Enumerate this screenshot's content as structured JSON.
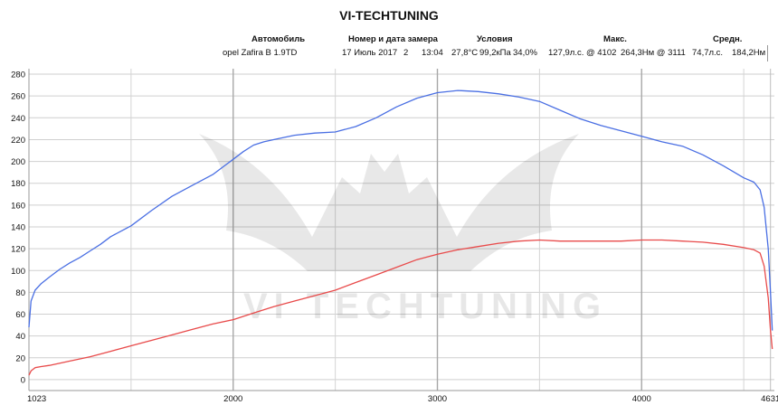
{
  "title": "VI-TECHTUNING",
  "table": {
    "headers": {
      "car": "Автомобиль",
      "run": "Номер и дата замера",
      "conditions": "Условия",
      "max": "Макс.",
      "avg": "Средн."
    },
    "row": {
      "car": "opel Zafira B 1.9TD",
      "date": "17 Июль 2017",
      "run_no": "2",
      "time": "13:04",
      "temp": "27,8°C",
      "pressure": "99,2кПа",
      "humidity": "34,0%",
      "max_power": "127,9л.с. @ 4102",
      "max_torque": "264,3Нм @ 3111",
      "avg_power": "74,7л.с.",
      "avg_torque": "184,2Нм"
    }
  },
  "watermark": "VI TECHTUNING",
  "chart_data": {
    "type": "line",
    "xlim": [
      1000,
      4650
    ],
    "ylim": [
      -10,
      285
    ],
    "x_ticks": [
      1023,
      2000,
      3000,
      4000,
      4631
    ],
    "y_ticks": [
      0,
      20,
      40,
      60,
      80,
      100,
      120,
      140,
      160,
      180,
      200,
      220,
      240,
      260,
      280
    ],
    "grid": true,
    "series": [
      {
        "color": "#4a6fe3",
        "x": [
          1000,
          1010,
          1030,
          1060,
          1100,
          1150,
          1200,
          1250,
          1300,
          1350,
          1400,
          1500,
          1600,
          1700,
          1800,
          1900,
          1950,
          2000,
          2050,
          2100,
          2150,
          2200,
          2300,
          2400,
          2500,
          2600,
          2700,
          2800,
          2900,
          3000,
          3100,
          3200,
          3300,
          3400,
          3500,
          3600,
          3700,
          3800,
          3900,
          4000,
          4100,
          4200,
          4300,
          4400,
          4500,
          4550,
          4580,
          4600,
          4620,
          4631,
          4640
        ],
        "y": [
          48,
          72,
          82,
          88,
          94,
          101,
          107,
          112,
          118,
          124,
          131,
          141,
          155,
          168,
          178,
          188,
          195,
          202,
          209,
          215,
          218,
          220,
          224,
          226,
          227,
          232,
          240,
          250,
          258,
          263,
          265,
          264,
          262,
          259,
          255,
          247,
          239,
          233,
          228,
          223,
          218,
          214,
          206,
          196,
          185,
          181,
          174,
          158,
          120,
          80,
          45
        ]
      },
      {
        "color": "#e84a4a",
        "x": [
          1000,
          1010,
          1030,
          1060,
          1100,
          1200,
          1300,
          1400,
          1500,
          1600,
          1700,
          1800,
          1900,
          2000,
          2100,
          2200,
          2300,
          2400,
          2500,
          2600,
          2700,
          2800,
          2900,
          3000,
          3100,
          3200,
          3300,
          3400,
          3500,
          3600,
          3700,
          3800,
          3900,
          4000,
          4100,
          4200,
          4300,
          4400,
          4500,
          4550,
          4580,
          4600,
          4620,
          4631,
          4640
        ],
        "y": [
          4,
          8,
          11,
          12,
          13,
          17,
          21,
          26,
          31,
          36,
          41,
          46,
          51,
          55,
          61,
          67,
          72,
          77,
          82,
          89,
          96,
          103,
          110,
          115,
          119,
          122,
          125,
          127,
          128,
          127,
          127,
          127,
          127,
          128,
          128,
          127,
          126,
          124,
          121,
          119,
          116,
          104,
          75,
          45,
          28
        ]
      }
    ]
  }
}
